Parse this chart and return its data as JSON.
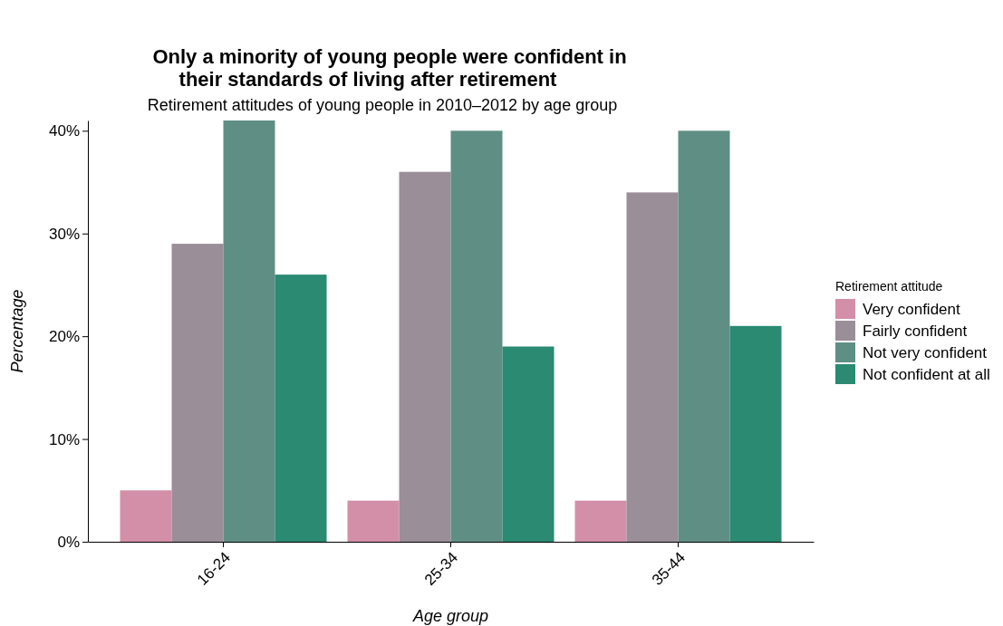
{
  "chart_data": {
    "type": "bar",
    "title": "Only a minority of young people were confident in\ntheir standards of living after retirement",
    "subtitle": "Retirement attitudes of young people in 2010–2012 by age group",
    "xlabel": "Age group",
    "ylabel": "Percentage",
    "legend_title": "Retirement attitude",
    "categories": [
      "16-24",
      "25-34",
      "35-44"
    ],
    "series": [
      {
        "name": "Very confident",
        "color": "#d48fa8",
        "values": [
          5,
          4,
          4
        ]
      },
      {
        "name": "Fairly confident",
        "color": "#9a8e98",
        "values": [
          29,
          36,
          34
        ]
      },
      {
        "name": "Not very confident",
        "color": "#5f8f84",
        "values": [
          41,
          40,
          40
        ]
      },
      {
        "name": "Not confident at all",
        "color": "#2a8a72",
        "values": [
          26,
          19,
          21
        ]
      }
    ],
    "ylim": [
      0,
      41
    ],
    "yticks": [
      {
        "value": 0,
        "label": "0%"
      },
      {
        "value": 10,
        "label": "10%"
      },
      {
        "value": 20,
        "label": "20%"
      },
      {
        "value": 30,
        "label": "30%"
      },
      {
        "value": 40,
        "label": "40%"
      }
    ],
    "grid": false,
    "legend": "right"
  }
}
